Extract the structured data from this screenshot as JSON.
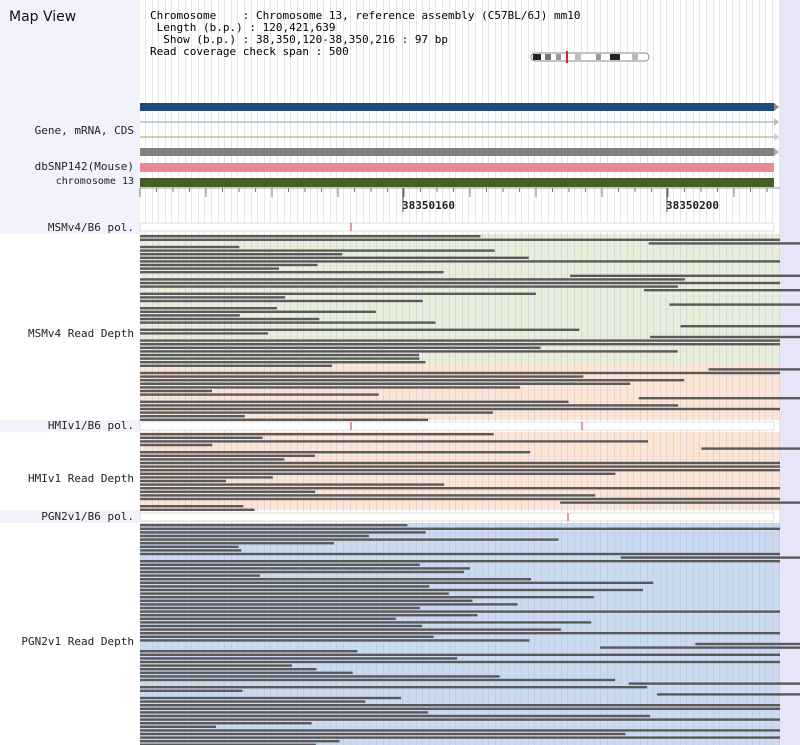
{
  "title": "Map View",
  "info": {
    "chromosome_label": "Chromosome",
    "chromosome_value": "Chromosome 13, reference assembly (C57BL/6J) mm10",
    "length_label": "Length (b.p.)",
    "length_value": "120,421,639",
    "show_label": "Show (b.p.)",
    "show_value": "38,350,120-38,350,216 : 97 bp",
    "coverage_label": "Read coverage check span",
    "coverage_value": "500"
  },
  "tracks": {
    "gene": "Gene, mRNA, CDS",
    "dbsnp": "dbSNP142(Mouse)",
    "chromosome": "chromosome 13",
    "msm_pol": "MSMv4/B6 pol.",
    "msm_depth": "MSMv4 Read Depth",
    "hmi_pol": "HMIv1/B6 pol.",
    "hmi_depth": "HMIv1 Read Depth",
    "pgn_pol": "PGN2v1/B6 pol.",
    "pgn_depth": "PGN2v1 Read Depth"
  },
  "axis": {
    "tick1": "38350160",
    "tick2": "38350200"
  },
  "colors": {
    "sidebar": "#f2f2fc",
    "gene_bar": "#1e4a7e",
    "mrna_line": "#7fa9b6",
    "cds_line": "#9aa84e",
    "gray_bar": "#808080",
    "snp_bar": "#e88a94",
    "chromosome_bar": "#445e23",
    "msm_bg": "#e8eedc",
    "hmi_bg": "#fbe5d6",
    "pgn_bg": "#c9daf1",
    "read": "#595959",
    "snp_marker": "#c0392b"
  }
}
